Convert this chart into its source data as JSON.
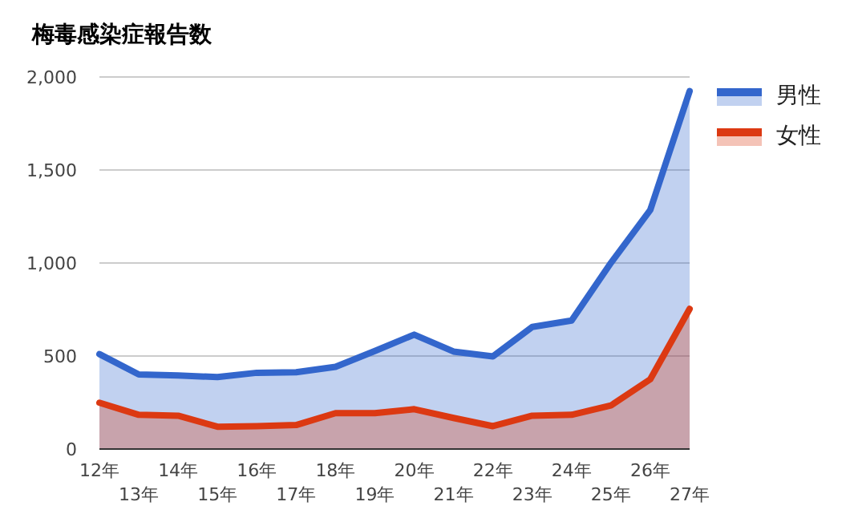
{
  "chart_data": {
    "type": "area",
    "title": "梅毒感染症報告数",
    "categories": [
      "12年",
      "13年",
      "14年",
      "15年",
      "16年",
      "17年",
      "18年",
      "19年",
      "20年",
      "21年",
      "22年",
      "23年",
      "24年",
      "25年",
      "26年",
      "27年"
    ],
    "series": [
      {
        "name": "男性",
        "color": "#3366cc",
        "values": [
          510,
          401,
          395,
          387,
          410,
          413,
          442,
          527,
          615,
          524,
          498,
          656,
          691,
          1001,
          1285,
          1924
        ]
      },
      {
        "name": "女性",
        "color": "#dc3912",
        "values": [
          249,
          184,
          179,
          120,
          123,
          129,
          193,
          193,
          214,
          167,
          123,
          179,
          184,
          234,
          375,
          753
        ]
      }
    ],
    "ylim": [
      0,
      2000
    ],
    "yticks": [
      0,
      {
        "value": 500,
        "label": "500"
      },
      {
        "value": 1000,
        "label": "1,000"
      },
      {
        "value": 1500,
        "label": "1,500"
      },
      {
        "value": 2000,
        "label": "2,000"
      }
    ],
    "grid": "y",
    "legend": "right"
  }
}
